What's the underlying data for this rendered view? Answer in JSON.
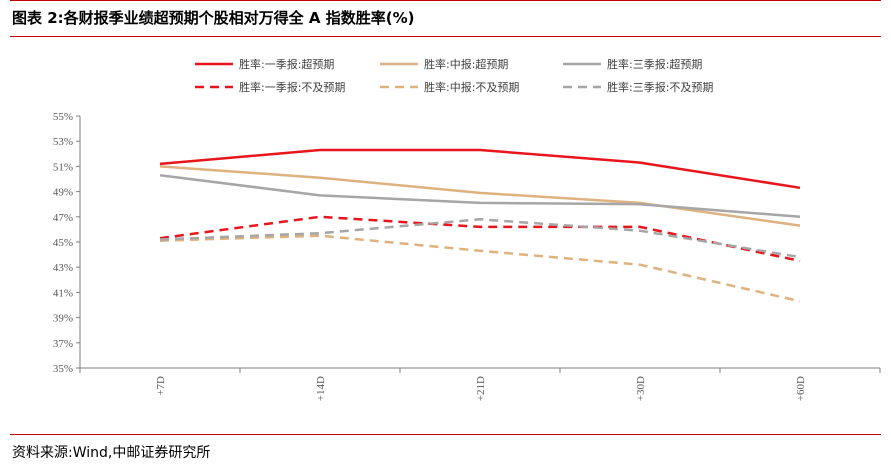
{
  "header": {
    "title": "图表 2:各财报季业绩超预期个股相对万得全 A 指数胜率(%)"
  },
  "footer": {
    "source": "资料来源:Wind,中邮证券研究所"
  },
  "colors": {
    "accent_rule": "#c00000",
    "q1": "#e8161c",
    "mid": "#deb27e",
    "q3": "#a6a6a6"
  },
  "chart_data": {
    "type": "line",
    "categories": [
      "+7D",
      "+14D",
      "+21D",
      "+30D",
      "+60D"
    ],
    "yticks": [
      "35%",
      "37%",
      "39%",
      "41%",
      "43%",
      "45%",
      "47%",
      "49%",
      "51%",
      "53%",
      "55%"
    ],
    "ylim": [
      35,
      55
    ],
    "grid": false,
    "legend_position": "top",
    "title": "",
    "xlabel": "",
    "ylabel": "",
    "series": [
      {
        "name": "胜率:一季报:超预期",
        "color": "#e8161c",
        "dash": false,
        "values": [
          51.2,
          52.3,
          52.3,
          51.3,
          49.3
        ]
      },
      {
        "name": "胜率:中报:超预期",
        "color": "#deb27e",
        "dash": false,
        "values": [
          51.0,
          50.1,
          48.9,
          48.1,
          46.3
        ]
      },
      {
        "name": "胜率:三季报:超预期",
        "color": "#a6a6a6",
        "dash": false,
        "values": [
          50.3,
          48.7,
          48.1,
          48.0,
          47.0
        ]
      },
      {
        "name": "胜率:一季报:不及预期",
        "color": "#e8161c",
        "dash": true,
        "values": [
          45.3,
          47.0,
          46.2,
          46.2,
          43.5
        ]
      },
      {
        "name": "胜率:中报:不及预期",
        "color": "#deb27e",
        "dash": true,
        "values": [
          45.1,
          45.5,
          44.3,
          43.2,
          40.3
        ]
      },
      {
        "name": "胜率:三季报:不及预期",
        "color": "#a6a6a6",
        "dash": true,
        "values": [
          45.2,
          45.7,
          46.8,
          45.9,
          43.8
        ]
      }
    ]
  }
}
